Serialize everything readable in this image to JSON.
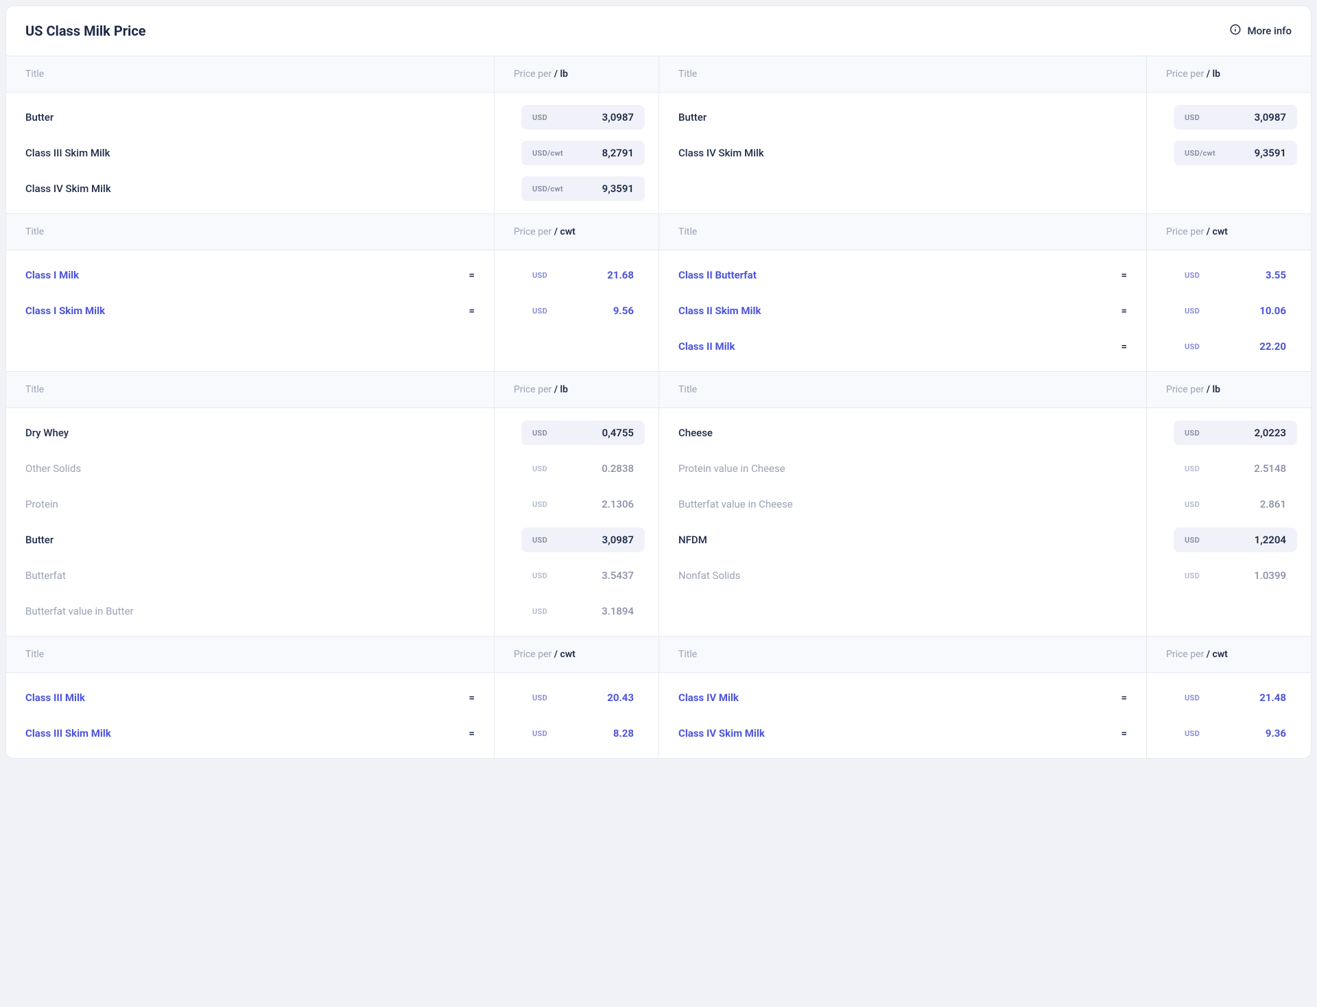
{
  "header": {
    "title": "US Class Milk Price",
    "more_info_label": "More info"
  },
  "labels": {
    "title_col": "Title",
    "price_per_prefix": "Price per",
    "lb": "/ lb",
    "cwt": "/ cwt",
    "equals": "="
  },
  "colors": {
    "accent": "#4d55d9",
    "text": "#1e2a47",
    "muted": "#9aa2b5",
    "border": "#e7e9f2",
    "pill_bg": "#f1f2f9",
    "head_bg": "#f8f9fc",
    "page_bg": "#f1f2f7"
  },
  "sections": [
    {
      "unit": "lb",
      "left": {
        "rows": [
          {
            "title": "Butter",
            "style": "normal",
            "currency": "USD",
            "value": "3,0987",
            "pill": "solid"
          },
          {
            "title": "Class III Skim Milk",
            "style": "normal",
            "currency": "USD/cwt",
            "value": "8,2791",
            "pill": "solid"
          },
          {
            "title": "Class IV Skim Milk",
            "style": "normal",
            "currency": "USD/cwt",
            "value": "9,3591",
            "pill": "solid"
          }
        ]
      },
      "right": {
        "rows": [
          {
            "title": "Butter",
            "style": "normal",
            "currency": "USD",
            "value": "3,0987",
            "pill": "solid"
          },
          {
            "title": "Class IV Skim Milk",
            "style": "normal",
            "currency": "USD/cwt",
            "value": "9,3591",
            "pill": "solid"
          }
        ]
      }
    },
    {
      "unit": "cwt",
      "left": {
        "rows": [
          {
            "title": "Class I Milk",
            "style": "accent",
            "eq": true,
            "currency": "USD",
            "value": "21.68",
            "pill": "accent"
          },
          {
            "title": "Class I Skim Milk",
            "style": "accent",
            "eq": true,
            "currency": "USD",
            "value": "9.56",
            "pill": "accent"
          }
        ]
      },
      "right": {
        "rows": [
          {
            "title": "Class II Butterfat",
            "style": "accent",
            "eq": true,
            "currency": "USD",
            "value": "3.55",
            "pill": "accent"
          },
          {
            "title": "Class II Skim Milk",
            "style": "accent",
            "eq": true,
            "currency": "USD",
            "value": "10.06",
            "pill": "accent"
          },
          {
            "title": "Class II Milk",
            "style": "accent",
            "eq": true,
            "currency": "USD",
            "value": "22.20",
            "pill": "accent"
          }
        ]
      }
    },
    {
      "unit": "lb",
      "left": {
        "rows": [
          {
            "title": "Dry Whey",
            "style": "normal",
            "currency": "USD",
            "value": "0,4755",
            "pill": "solid"
          },
          {
            "title": "Other Solids",
            "style": "muted",
            "currency": "USD",
            "value": "0.2838",
            "pill": "plain"
          },
          {
            "title": "Protein",
            "style": "muted",
            "currency": "USD",
            "value": "2.1306",
            "pill": "plain"
          },
          {
            "title": "Butter",
            "style": "normal",
            "currency": "USD",
            "value": "3,0987",
            "pill": "solid"
          },
          {
            "title": "Butterfat",
            "style": "muted",
            "currency": "USD",
            "value": "3.5437",
            "pill": "plain"
          },
          {
            "title": "Butterfat value in Butter",
            "style": "muted",
            "currency": "USD",
            "value": "3.1894",
            "pill": "plain"
          }
        ]
      },
      "right": {
        "rows": [
          {
            "title": "Cheese",
            "style": "normal",
            "currency": "USD",
            "value": "2,0223",
            "pill": "solid"
          },
          {
            "title": "Protein value in Cheese",
            "style": "muted",
            "currency": "USD",
            "value": "2.5148",
            "pill": "plain"
          },
          {
            "title": "Butterfat value in Cheese",
            "style": "muted",
            "currency": "USD",
            "value": "2.861",
            "pill": "plain"
          },
          {
            "title": "NFDM",
            "style": "normal",
            "currency": "USD",
            "value": "1,2204",
            "pill": "solid"
          },
          {
            "title": "Nonfat Solids",
            "style": "muted",
            "currency": "USD",
            "value": "1.0399",
            "pill": "plain"
          }
        ]
      }
    },
    {
      "unit": "cwt",
      "left": {
        "rows": [
          {
            "title": "Class III Milk",
            "style": "accent",
            "eq": true,
            "currency": "USD",
            "value": "20.43",
            "pill": "accent"
          },
          {
            "title": "Class III Skim Milk",
            "style": "accent",
            "eq": true,
            "currency": "USD",
            "value": "8.28",
            "pill": "accent"
          }
        ]
      },
      "right": {
        "rows": [
          {
            "title": "Class IV Milk",
            "style": "accent",
            "eq": true,
            "currency": "USD",
            "value": "21.48",
            "pill": "accent"
          },
          {
            "title": "Class IV Skim Milk",
            "style": "accent",
            "eq": true,
            "currency": "USD",
            "value": "9.36",
            "pill": "accent"
          }
        ]
      }
    }
  ]
}
